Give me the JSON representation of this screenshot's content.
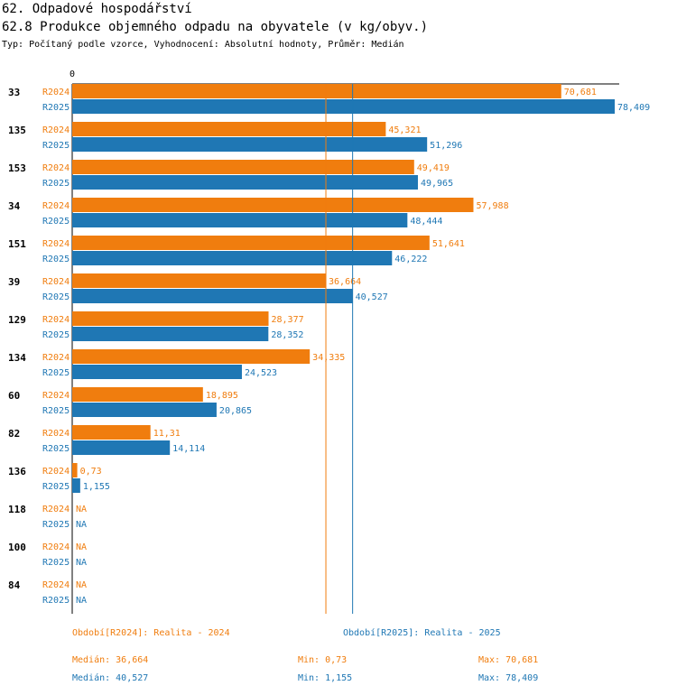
{
  "header": {
    "section": "62. Odpadové hospodářství",
    "title": "62.8 Produkce objemného odpadu na obyvatele (v kg/obyv.)",
    "subtitle": "Typ: Počítaný podle vzorce, Vyhodnocení: Absolutní hodnoty, Průměr: Medián"
  },
  "chart_data": {
    "type": "bar",
    "orientation": "horizontal",
    "title": "62.8 Produkce objemného odpadu na obyvatele (v kg/obyv.)",
    "axis_zero_label": "0",
    "xlim": [
      0,
      78.409
    ],
    "categories": [
      "33",
      "135",
      "153",
      "34",
      "151",
      "39",
      "129",
      "134",
      "60",
      "82",
      "136",
      "118",
      "100",
      "84"
    ],
    "series": [
      {
        "name": "R2024",
        "color": "#f07d0e",
        "values": [
          70.681,
          45.321,
          49.419,
          57.988,
          51.641,
          36.664,
          28.377,
          34.335,
          18.895,
          11.31,
          0.73,
          null,
          null,
          null
        ],
        "labels": [
          "70,681",
          "45,321",
          "49,419",
          "57,988",
          "51,641",
          "36,664",
          "28,377",
          "34,335",
          "18,895",
          "11,31",
          "0,73",
          "NA",
          "NA",
          "NA"
        ]
      },
      {
        "name": "R2025",
        "color": "#1f77b4",
        "values": [
          78.409,
          51.296,
          49.965,
          48.444,
          46.222,
          40.527,
          28.352,
          24.523,
          20.865,
          14.114,
          1.155,
          null,
          null,
          null
        ],
        "labels": [
          "78,409",
          "51,296",
          "49,965",
          "48,444",
          "46,222",
          "40,527",
          "28,352",
          "24,523",
          "20,865",
          "14,114",
          "1,155",
          "NA",
          "NA",
          "NA"
        ]
      }
    ],
    "medians": [
      36.664,
      40.527
    ]
  },
  "legend": {
    "r2024": "Období[R2024]: Realita - 2024",
    "r2025": "Období[R2025]: Realita - 2025"
  },
  "stats": {
    "r2024": {
      "median": "Medián: 36,664",
      "min": "Min: 0,73",
      "max": "Max: 70,681"
    },
    "r2025": {
      "median": "Medián: 40,527",
      "min": "Min: 1,155",
      "max": "Max: 78,409"
    }
  }
}
